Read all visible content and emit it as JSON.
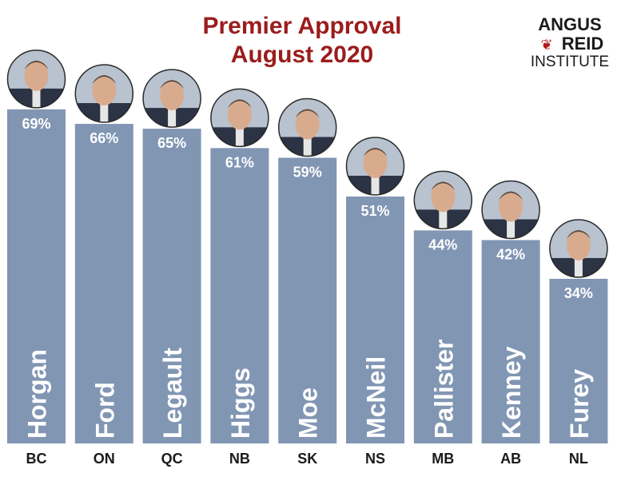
{
  "chart_data": {
    "type": "bar",
    "title": [
      "Premier Approval",
      "August 2020"
    ],
    "categories": [
      "BC",
      "ON",
      "QC",
      "NB",
      "SK",
      "NS",
      "MB",
      "AB",
      "NL"
    ],
    "premiers": [
      "Horgan",
      "Ford",
      "Legault",
      "Higgs",
      "Moe",
      "McNeil",
      "Pallister",
      "Kenney",
      "Furey"
    ],
    "values": [
      69,
      66,
      65,
      61,
      59,
      51,
      44,
      42,
      34
    ],
    "value_suffix": "%",
    "bar_color": "#8196b3",
    "title_color": "#9b1c1c",
    "ylim": [
      0,
      100
    ],
    "xlabel": "",
    "ylabel": "",
    "grid": false,
    "legend": "none"
  },
  "brand": {
    "line1": "ANGUS",
    "line2": "REID",
    "line3": "INSTITUTE",
    "leaf_color": "#b31b1b"
  }
}
